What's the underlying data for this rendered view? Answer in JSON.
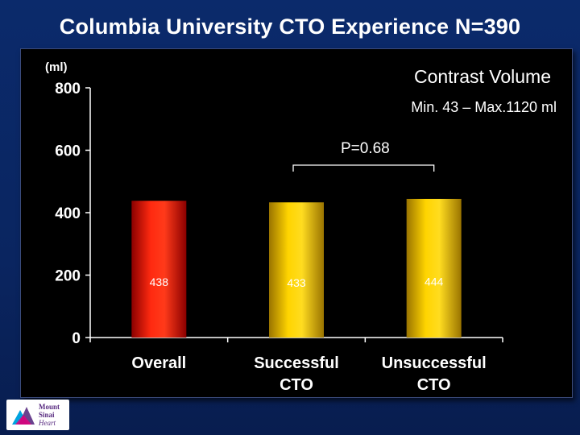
{
  "slide": {
    "title": "Columbia University CTO Experience N=390"
  },
  "logo": {
    "line1": "Mount",
    "line2": "Sinai",
    "line3": "Heart"
  },
  "colors": {
    "background": "#0a2560",
    "panel": "#000000",
    "axis": "#ffffff",
    "bar_red": "#e8140c",
    "bar_gold": "#f2c200",
    "label_on_red": "#ffffff",
    "label_on_gold": "#ffffff"
  },
  "chart_data": {
    "type": "bar",
    "title": "Contrast Volume",
    "subtitle": "Min. 43 – Max.1120 ml",
    "ylabel": "(ml)",
    "xlabel": "",
    "ylim": [
      0,
      800
    ],
    "yticks": [
      "0",
      "200",
      "400",
      "600",
      "800"
    ],
    "categories": [
      [
        "Overall"
      ],
      [
        "Successful",
        "CTO"
      ],
      [
        "Unsuccessful",
        "CTO"
      ]
    ],
    "values": [
      438,
      433,
      444
    ],
    "value_labels": [
      "438",
      "433",
      "444"
    ],
    "bar_colors": [
      "red",
      "gold",
      "gold"
    ],
    "annotation": {
      "text": "P=0.68",
      "from_category": 1,
      "to_category": 2
    }
  }
}
